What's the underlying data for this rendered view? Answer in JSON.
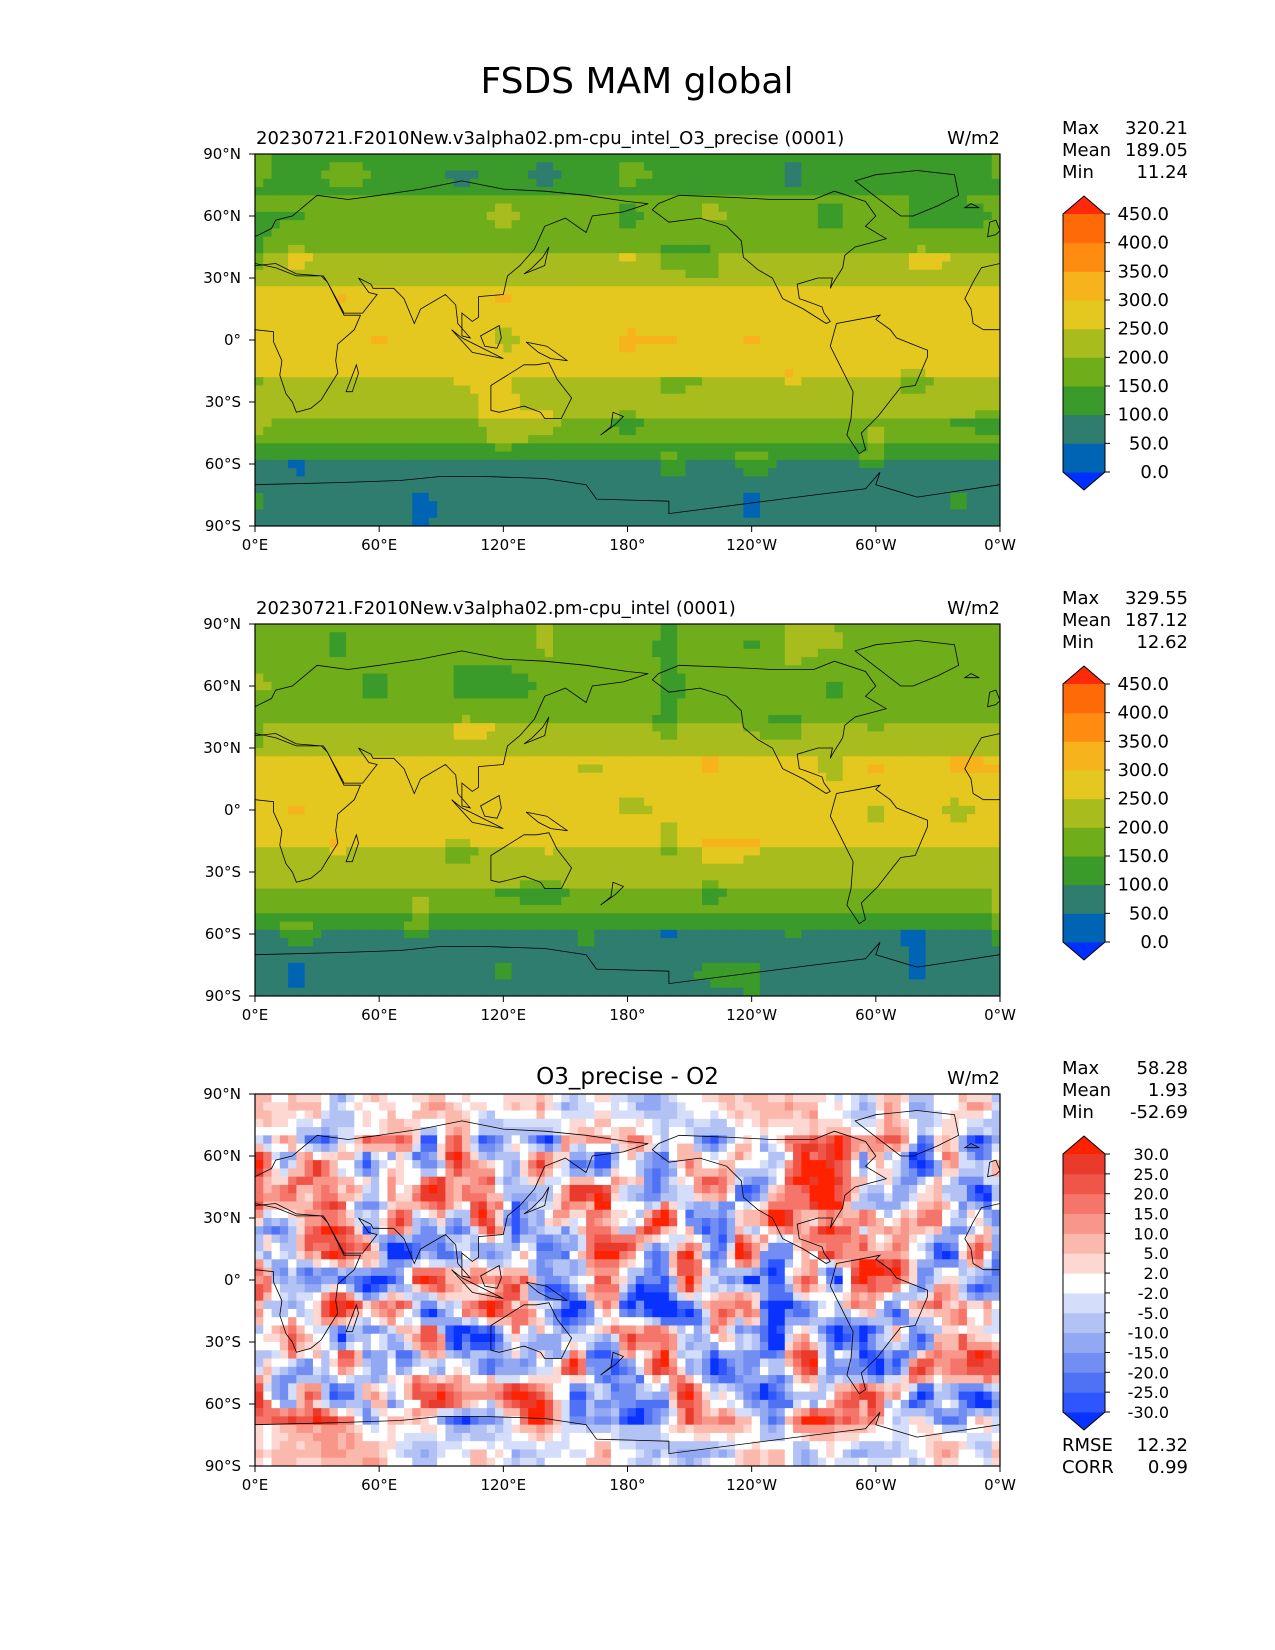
{
  "figure": {
    "title": "FSDS MAM global"
  },
  "chart_data": [
    {
      "type": "heatmap",
      "panel_title": "20230721.F2010New.v3alpha02.pm-cpu_intel_O3_precise (0001)",
      "units": "W/m2",
      "field": "test",
      "stats": [
        {
          "label": "Max",
          "value": "320.21"
        },
        {
          "label": "Mean",
          "value": "189.05"
        },
        {
          "label": "Min",
          "value": "11.24"
        }
      ],
      "xlabels": [
        "0°E",
        "60°E",
        "120°E",
        "180°",
        "120°W",
        "60°W",
        "0°W"
      ],
      "ylabels": [
        "90°N",
        "60°N",
        "30°N",
        "0°",
        "30°S",
        "60°S",
        "90°S"
      ],
      "xlim": [
        0,
        360
      ],
      "ylim": [
        -90,
        90
      ],
      "colorbar": {
        "levels": [
          "0.0",
          "50.0",
          "100.0",
          "150.0",
          "200.0",
          "250.0",
          "300.0",
          "350.0",
          "400.0",
          "450.0"
        ],
        "colors": [
          "#0030ff",
          "#0064b4",
          "#2e7d6e",
          "#3a9a2a",
          "#6fae1a",
          "#a8bc1e",
          "#e4c81f",
          "#f7b31b",
          "#ff8c10",
          "#ff6a08",
          "#ff2a0a"
        ]
      },
      "bands": [
        {
          "lat": [
            -90,
            -60
          ],
          "value": "50.0"
        },
        {
          "lat": [
            -60,
            -50
          ],
          "value": "100.0"
        },
        {
          "lat": [
            -50,
            -38
          ],
          "value": "150.0"
        },
        {
          "lat": [
            -38,
            -20
          ],
          "value": "200.0"
        },
        {
          "lat": [
            -20,
            25
          ],
          "value": "250.0"
        },
        {
          "lat": [
            25,
            42
          ],
          "value": "200.0"
        },
        {
          "lat": [
            42,
            70
          ],
          "value": "150.0"
        },
        {
          "lat": [
            70,
            90
          ],
          "value": "100.0"
        }
      ]
    },
    {
      "type": "heatmap",
      "panel_title": "20230721.F2010New.v3alpha02.pm-cpu_intel (0001)",
      "units": "W/m2",
      "field": "ref",
      "stats": [
        {
          "label": "Max",
          "value": "329.55"
        },
        {
          "label": "Mean",
          "value": "187.12"
        },
        {
          "label": "Min",
          "value": "12.62"
        }
      ],
      "xlabels": [
        "0°E",
        "60°E",
        "120°E",
        "180°",
        "120°W",
        "60°W",
        "0°W"
      ],
      "ylabels": [
        "90°N",
        "60°N",
        "30°N",
        "0°",
        "30°S",
        "60°S",
        "90°S"
      ],
      "xlim": [
        0,
        360
      ],
      "ylim": [
        -90,
        90
      ],
      "colorbar": {
        "levels": [
          "0.0",
          "50.0",
          "100.0",
          "150.0",
          "200.0",
          "250.0",
          "300.0",
          "350.0",
          "400.0",
          "450.0"
        ],
        "colors": [
          "#0030ff",
          "#0064b4",
          "#2e7d6e",
          "#3a9a2a",
          "#6fae1a",
          "#a8bc1e",
          "#e4c81f",
          "#f7b31b",
          "#ff8c10",
          "#ff6a08",
          "#ff2a0a"
        ]
      },
      "bands": [
        {
          "lat": [
            -90,
            -60
          ],
          "value": "50.0"
        },
        {
          "lat": [
            -60,
            -50
          ],
          "value": "100.0"
        },
        {
          "lat": [
            -50,
            -38
          ],
          "value": "150.0"
        },
        {
          "lat": [
            -38,
            -20
          ],
          "value": "200.0"
        },
        {
          "lat": [
            -20,
            25
          ],
          "value": "250.0"
        },
        {
          "lat": [
            25,
            42
          ],
          "value": "200.0"
        },
        {
          "lat": [
            42,
            70
          ],
          "value": "150.0"
        },
        {
          "lat": [
            70,
            90
          ],
          "value": "150.0"
        }
      ]
    },
    {
      "type": "heatmap",
      "panel_title": "O3_precise - O2",
      "units": "W/m2",
      "field": "diff",
      "stats": [
        {
          "label": "Max",
          "value": "58.28"
        },
        {
          "label": "Mean",
          "value": "1.93"
        },
        {
          "label": "Min",
          "value": "-52.69"
        }
      ],
      "extra_stats": [
        {
          "label": "RMSE",
          "value": "12.32"
        },
        {
          "label": "CORR",
          "value": "0.99"
        }
      ],
      "xlabels": [
        "0°E",
        "60°E",
        "120°E",
        "180°",
        "120°W",
        "60°W",
        "0°W"
      ],
      "ylabels": [
        "90°N",
        "60°N",
        "30°N",
        "0°",
        "30°S",
        "60°S",
        "90°S"
      ],
      "xlim": [
        0,
        360
      ],
      "ylim": [
        -90,
        90
      ],
      "colorbar": {
        "levels": [
          "-30.0",
          "-25.0",
          "-20.0",
          "-15.0",
          "-10.0",
          "-5.0",
          "-2.0",
          "2.0",
          "5.0",
          "10.0",
          "15.0",
          "20.0",
          "25.0",
          "30.0"
        ],
        "colors": [
          "#0a32ff",
          "#2e55ff",
          "#4f72f5",
          "#728ef2",
          "#93a8f2",
          "#b3c2f5",
          "#d4ddfa",
          "#ffffff",
          "#fdd8d2",
          "#fbb8ac",
          "#f8968a",
          "#f5756a",
          "#f0554a",
          "#ea3a2c",
          "#ff2200"
        ]
      }
    }
  ]
}
